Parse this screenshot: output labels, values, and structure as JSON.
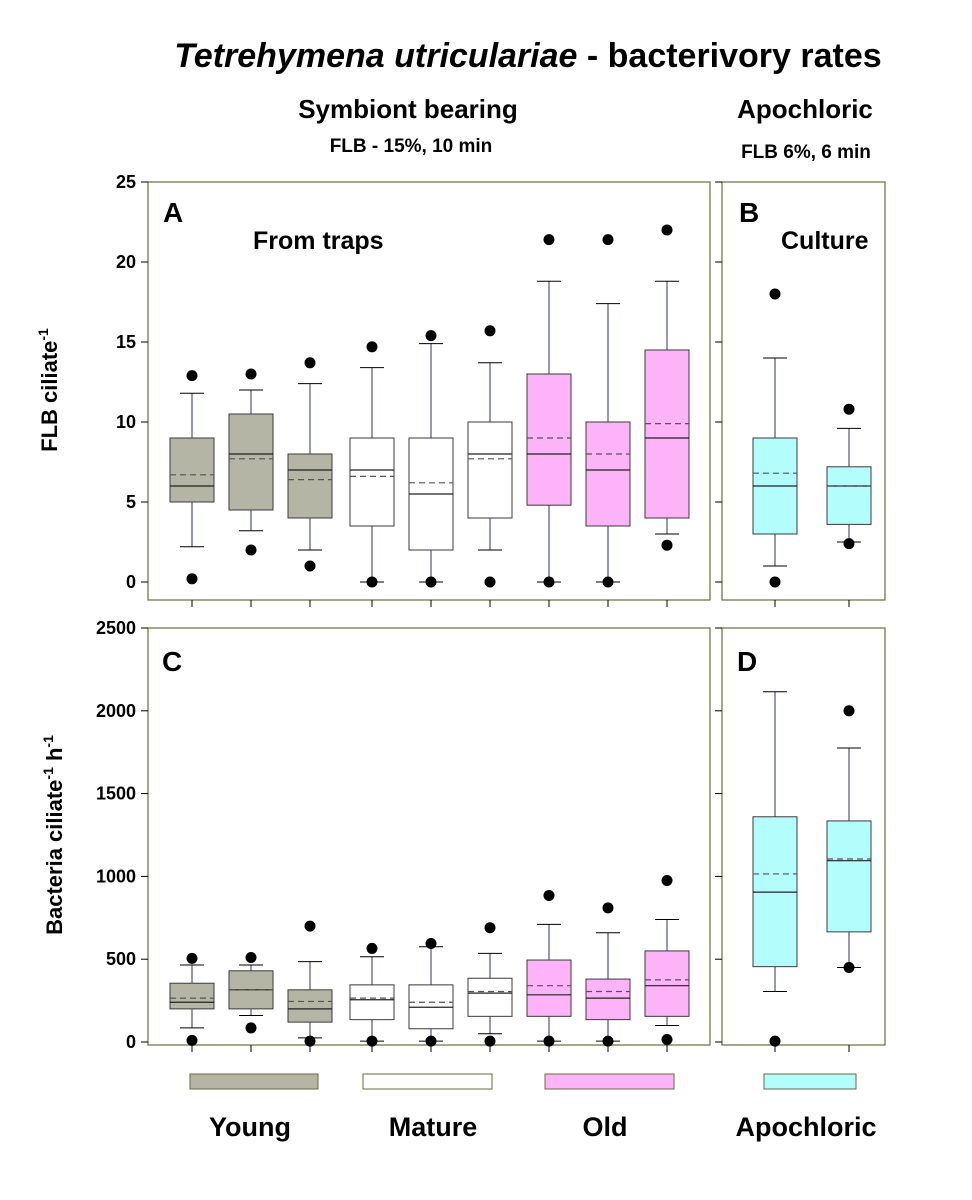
{
  "chart_data": {
    "type": "boxplot",
    "title": {
      "italic": "Tetrehymena utriculariae",
      "rest": " - bacterivory rates"
    },
    "groups_header": {
      "symbiont": {
        "label": "Symbiont bearing",
        "sub": "FLB - 15%, 10 min"
      },
      "apochloric": {
        "label": "Apochloric",
        "sub": "FLB 6%, 6 min"
      }
    },
    "colors": {
      "young": "#b5b5a5",
      "mature": "#ffffff",
      "old": "#fdb3f7",
      "apochloric": "#b3fdfd",
      "frame": "#6b6b3a",
      "whisker": "#2f2f6e"
    },
    "panels": [
      {
        "id": "A",
        "label": "A",
        "note": "From traps",
        "ylabel_main": "FLB ciliate",
        "ylabel_sup": "-1",
        "ylabel_tail": "",
        "ylim": [
          0,
          25
        ],
        "yticks": [
          0,
          5,
          10,
          15,
          20,
          25
        ],
        "boxes": [
          {
            "group": "young",
            "q1": 5.0,
            "median": 6.0,
            "mean": 6.7,
            "q3": 9.0,
            "wlo": 2.2,
            "whi": 11.8,
            "outliers": [
              0.2,
              12.9
            ]
          },
          {
            "group": "young",
            "q1": 4.5,
            "median": 8.0,
            "mean": 7.7,
            "q3": 10.5,
            "wlo": 3.2,
            "whi": 12.0,
            "outliers": [
              2.0,
              13.0
            ]
          },
          {
            "group": "young",
            "q1": 4.0,
            "median": 7.0,
            "mean": 6.4,
            "q3": 8.0,
            "wlo": 2.0,
            "whi": 12.4,
            "outliers": [
              1.0,
              13.7
            ]
          },
          {
            "group": "mature",
            "q1": 3.5,
            "median": 7.0,
            "mean": 6.6,
            "q3": 9.0,
            "wlo": 0.0,
            "whi": 13.4,
            "outliers": [
              0.0,
              14.7
            ]
          },
          {
            "group": "mature",
            "q1": 2.0,
            "median": 5.5,
            "mean": 6.2,
            "q3": 9.0,
            "wlo": 0.0,
            "whi": 14.9,
            "outliers": [
              0.0,
              15.4
            ]
          },
          {
            "group": "mature",
            "q1": 4.0,
            "median": 8.0,
            "mean": 7.7,
            "q3": 10.0,
            "wlo": 2.0,
            "whi": 13.7,
            "outliers": [
              0.0,
              15.7
            ]
          },
          {
            "group": "old",
            "q1": 4.8,
            "median": 8.0,
            "mean": 9.0,
            "q3": 13.0,
            "wlo": 0.0,
            "whi": 18.8,
            "outliers": [
              0.0,
              21.4
            ]
          },
          {
            "group": "old",
            "q1": 3.5,
            "median": 7.0,
            "mean": 8.0,
            "q3": 10.0,
            "wlo": 0.0,
            "whi": 17.4,
            "outliers": [
              0.0,
              21.4
            ]
          },
          {
            "group": "old",
            "q1": 4.0,
            "median": 9.0,
            "mean": 9.9,
            "q3": 14.5,
            "wlo": 3.0,
            "whi": 18.8,
            "outliers": [
              2.3,
              22.0
            ]
          }
        ]
      },
      {
        "id": "B",
        "label": "B",
        "note": "Culture",
        "ylim": [
          0,
          25
        ],
        "boxes": [
          {
            "group": "apochloric",
            "q1": 3.0,
            "median": 6.0,
            "mean": 6.8,
            "q3": 9.0,
            "wlo": 1.0,
            "whi": 14.0,
            "outliers": [
              0.0,
              18.0
            ]
          },
          {
            "group": "apochloric",
            "q1": 3.6,
            "median": 6.0,
            "mean": 6.0,
            "q3": 7.2,
            "wlo": 2.5,
            "whi": 9.6,
            "outliers": [
              2.4,
              10.8
            ]
          }
        ]
      },
      {
        "id": "C",
        "label": "C",
        "note": "",
        "ylabel_main": "Bacteria ciliate",
        "ylabel_sup": "-1",
        "ylabel_tail": " h",
        "ylabel_sup2": "-1",
        "ylim": [
          0,
          2500
        ],
        "yticks": [
          0,
          500,
          1000,
          1500,
          2000,
          2500
        ],
        "boxes": [
          {
            "group": "young",
            "q1": 200,
            "median": 240,
            "mean": 265,
            "q3": 355,
            "wlo": 85,
            "whi": 465,
            "outliers": [
              10,
              505
            ]
          },
          {
            "group": "young",
            "q1": 200,
            "median": 315,
            "mean": 315,
            "q3": 430,
            "wlo": 160,
            "whi": 465,
            "outliers": [
              85,
              510
            ]
          },
          {
            "group": "young",
            "q1": 120,
            "median": 200,
            "mean": 245,
            "q3": 315,
            "wlo": 25,
            "whi": 485,
            "outliers": [
              5,
              700
            ]
          },
          {
            "group": "mature",
            "q1": 135,
            "median": 255,
            "mean": 265,
            "q3": 345,
            "wlo": 5,
            "whi": 515,
            "outliers": [
              5,
              565
            ]
          },
          {
            "group": "mature",
            "q1": 80,
            "median": 210,
            "mean": 240,
            "q3": 345,
            "wlo": 5,
            "whi": 575,
            "outliers": [
              5,
              595
            ]
          },
          {
            "group": "mature",
            "q1": 155,
            "median": 295,
            "mean": 305,
            "q3": 385,
            "wlo": 50,
            "whi": 535,
            "outliers": [
              5,
              690
            ]
          },
          {
            "group": "old",
            "q1": 155,
            "median": 285,
            "mean": 340,
            "q3": 495,
            "wlo": 5,
            "whi": 710,
            "outliers": [
              5,
              885
            ]
          },
          {
            "group": "old",
            "q1": 135,
            "median": 265,
            "mean": 305,
            "q3": 380,
            "wlo": 5,
            "whi": 660,
            "outliers": [
              5,
              810
            ]
          },
          {
            "group": "old",
            "q1": 155,
            "median": 340,
            "mean": 375,
            "q3": 550,
            "wlo": 100,
            "whi": 740,
            "outliers": [
              15,
              975
            ]
          }
        ]
      },
      {
        "id": "D",
        "label": "D",
        "note": "",
        "ylim": [
          0,
          2500
        ],
        "boxes": [
          {
            "group": "apochloric",
            "q1": 455,
            "median": 905,
            "mean": 1015,
            "q3": 1360,
            "wlo": 305,
            "whi": 2115,
            "outliers": [
              5
            ]
          },
          {
            "group": "apochloric",
            "q1": 665,
            "median": 1095,
            "mean": 1105,
            "q3": 1335,
            "wlo": 450,
            "whi": 1775,
            "outliers": [
              450,
              2000
            ]
          }
        ]
      }
    ],
    "legend": [
      {
        "group": "young",
        "label": "Young"
      },
      {
        "group": "mature",
        "label": "Mature"
      },
      {
        "group": "old",
        "label": "Old"
      },
      {
        "group": "apochloric",
        "label": "Apochloric"
      }
    ],
    "line_styles": {
      "median": "solid",
      "mean": "dashed"
    }
  }
}
